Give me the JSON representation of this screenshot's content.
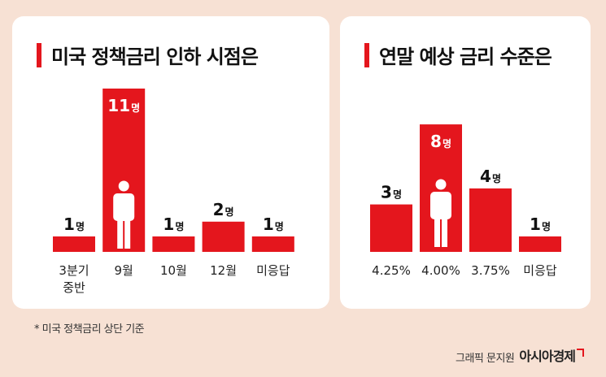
{
  "footnote": "* 미국 정책금리 상단 기준",
  "credit": {
    "sub": "그래픽 문지원",
    "brand": "아시아경제"
  },
  "colors": {
    "accent": "#e4161d",
    "background": "#f7e1d4",
    "panel": "#ffffff",
    "text": "#111111"
  },
  "chart_data": [
    {
      "type": "bar",
      "title": "미국 정책금리 인하 시점은",
      "categories": [
        [
          "3분기",
          "중반"
        ],
        [
          "9월"
        ],
        [
          "10월"
        ],
        [
          "12월"
        ],
        [
          "미응답"
        ]
      ],
      "values": [
        1,
        11,
        1,
        2,
        1
      ],
      "unit": "명",
      "highlight_icon": "person-icon",
      "highlight_index": 1
    },
    {
      "type": "bar",
      "title": "연말 예상 금리 수준은",
      "categories": [
        [
          "4.25%"
        ],
        [
          "4.00%"
        ],
        [
          "3.75%"
        ],
        [
          "미응답"
        ]
      ],
      "values": [
        3,
        8,
        4,
        1
      ],
      "unit": "명",
      "highlight_icon": "person-icon",
      "highlight_index": 1
    }
  ]
}
